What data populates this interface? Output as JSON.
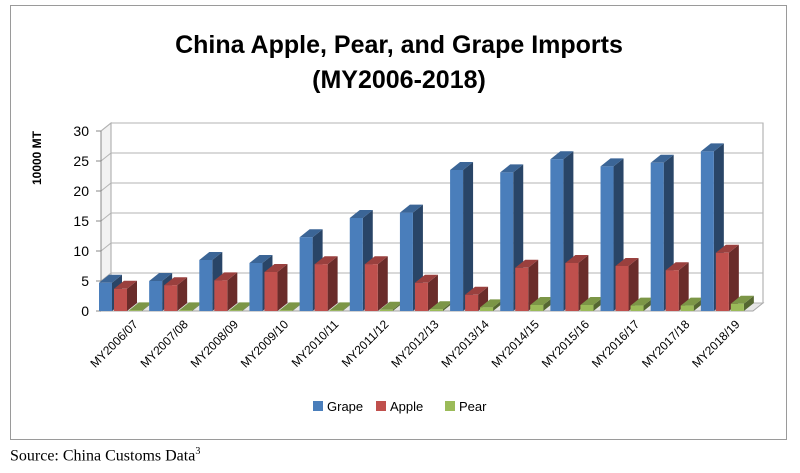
{
  "chart_data": {
    "type": "bar",
    "title_line1": "China Apple, Pear, and Grape Imports",
    "title_line2": "(MY2006-2018)",
    "ylabel": "10000 MT",
    "xlabel": "",
    "ylim": [
      0,
      30
    ],
    "yticks": [
      "30",
      "25",
      "20",
      "15",
      "10",
      "5",
      "0"
    ],
    "categories": [
      "MY2006/07",
      "MY2007/08",
      "MY2008/09",
      "MY2009/10",
      "MY2010/11",
      "MY2011/12",
      "MY2012/13",
      "MY2013/14",
      "MY2014/15",
      "MY2015/16",
      "MY2016/17",
      "MY2017/18",
      "MY2018/19"
    ],
    "series": [
      {
        "name": "Grape",
        "color": "#4a7ebb",
        "values": [
          4.7,
          5.0,
          8.5,
          8.0,
          12.3,
          15.5,
          16.4,
          23.5,
          23.1,
          25.3,
          24.1,
          24.7,
          26.6
        ]
      },
      {
        "name": "Apple",
        "color": "#c0504d",
        "values": [
          3.7,
          4.3,
          5.1,
          6.5,
          7.8,
          7.8,
          4.7,
          2.7,
          7.2,
          8.0,
          7.5,
          6.8,
          9.7
        ]
      },
      {
        "name": "Pear",
        "color": "#9bbb59",
        "values": [
          0.1,
          0.1,
          0.1,
          0.1,
          0.1,
          0.2,
          0.3,
          0.6,
          1.0,
          1.0,
          0.9,
          0.9,
          1.2
        ]
      }
    ],
    "grid": true,
    "legend_position": "bottom"
  },
  "source": {
    "label": "Source: China Customs Data",
    "footnote": "3"
  }
}
